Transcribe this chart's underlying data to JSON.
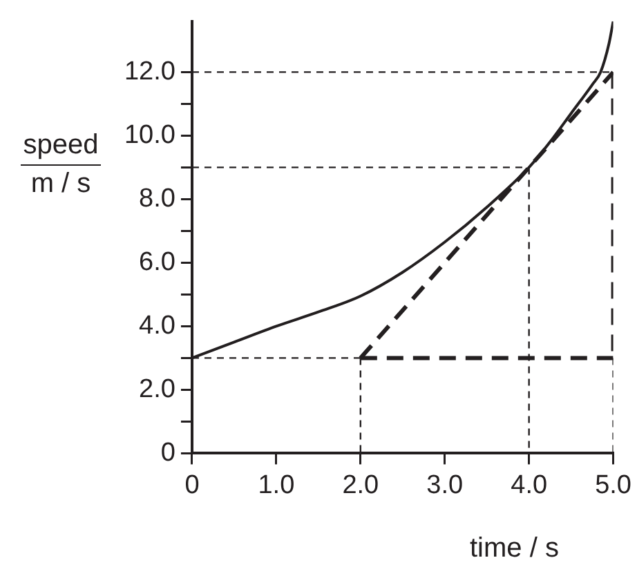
{
  "chart_data": {
    "type": "line",
    "xlabel": "time / s",
    "ylabel": "speed\nm / s",
    "xlim": [
      0,
      5
    ],
    "ylim": [
      0,
      13.6
    ],
    "xticks": [
      0,
      {
        "value": 1,
        "label": "1.0"
      },
      {
        "value": 2,
        "label": "2.0"
      },
      {
        "value": 3,
        "label": "3.0"
      },
      {
        "value": 4,
        "label": "4.0"
      },
      {
        "value": 5,
        "label": "5.0"
      }
    ],
    "yticks": [
      0,
      {
        "value": 1,
        "label": null
      },
      {
        "value": 2,
        "label": "2.0"
      },
      {
        "value": 3,
        "label": null
      },
      {
        "value": 4,
        "label": "4.0"
      },
      {
        "value": 5,
        "label": null
      },
      {
        "value": 6,
        "label": "6.0"
      },
      {
        "value": 7,
        "label": null
      },
      {
        "value": 8,
        "label": "8.0"
      },
      {
        "value": 9,
        "label": null
      },
      {
        "value": 10,
        "label": "10.0"
      },
      {
        "value": 11,
        "label": null
      },
      {
        "value": 12,
        "label": "12.0"
      }
    ],
    "grid": false,
    "legend": false,
    "marker": "none",
    "series": [
      {
        "color": "#231f20",
        "line_style": "solid",
        "x": [
          0,
          0.5,
          1,
          1.5,
          2,
          2.5,
          3,
          3.5,
          4,
          4.25,
          4.5,
          4.75,
          4.85,
          4.95,
          5
        ],
        "values": [
          3.0,
          3.5,
          4.0,
          4.45,
          4.95,
          5.7,
          6.65,
          7.75,
          9.0,
          9.8,
          10.7,
          11.6,
          12.0,
          12.9,
          13.6
        ]
      },
      {
        "color": "#231f20",
        "line_style": "dashed",
        "x": [
          2,
          5
        ],
        "values": [
          3,
          12
        ]
      },
      {
        "color": "#231f20",
        "line_style": "dashed",
        "x": [
          5,
          5
        ],
        "values": [
          12,
          3
        ]
      },
      {
        "color": "#231f20",
        "line_style": "dashed",
        "x": [
          2,
          5
        ],
        "values": [
          3,
          3
        ]
      },
      {
        "color": "#231f20",
        "line_style": "dotted",
        "x": [
          0,
          5
        ],
        "values": [
          12,
          12
        ]
      },
      {
        "color": "#231f20",
        "line_style": "dotted",
        "x": [
          0,
          4
        ],
        "values": [
          9,
          9
        ]
      },
      {
        "color": "#231f20",
        "line_style": "dotted",
        "x": [
          4,
          4
        ],
        "values": [
          9,
          0
        ]
      },
      {
        "color": "#231f20",
        "line_style": "dotted",
        "x": [
          0,
          2
        ],
        "values": [
          3,
          3
        ]
      },
      {
        "color": "#231f20",
        "line_style": "dotted",
        "x": [
          2,
          2
        ],
        "values": [
          3,
          0
        ]
      },
      {
        "color": "#231f20",
        "line_style": "dotted",
        "x": [
          5,
          5
        ],
        "values": [
          3,
          0
        ]
      }
    ]
  }
}
